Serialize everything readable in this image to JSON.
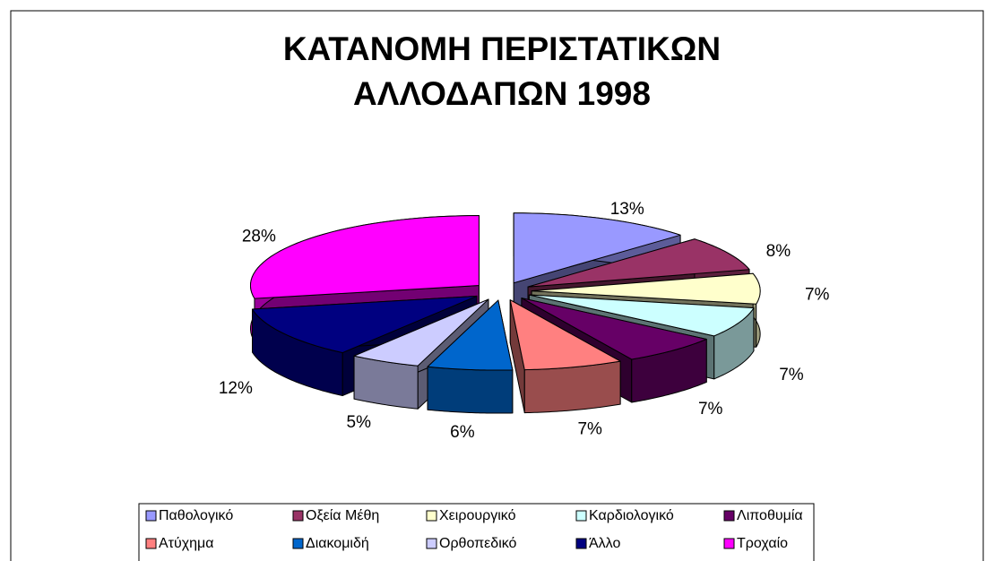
{
  "chart_data": {
    "type": "pie3d",
    "title": [
      "ΚΑΤΑΝΟΜΗ ΠΕΡΙΣΤΑΤΙΚΩΝ",
      "ΑΛΛΟΔΑΠΩΝ 1998"
    ],
    "categories": [
      "Παθολογικό",
      "Οξεία Μέθη",
      "Χειρουργικό",
      "Καρδιολογικό",
      "Λιποθυμία",
      "Ατύχημα",
      "Διακομιδή",
      "Ορθοπεδικό",
      "Άλλο",
      "Τροχαίο"
    ],
    "values": [
      13,
      8,
      7,
      7,
      7,
      7,
      6,
      5,
      12,
      28
    ],
    "value_labels": [
      "13%",
      "8%",
      "7%",
      "7%",
      "7%",
      "7%",
      "6%",
      "5%",
      "12%",
      "28%"
    ],
    "colors": [
      "#9999FF",
      "#993366",
      "#FFFFCC",
      "#CCFFFF",
      "#660066",
      "#FF8080",
      "#0066CC",
      "#CCCCFF",
      "#000080",
      "#FF00FF"
    ],
    "legend": "bottom"
  }
}
